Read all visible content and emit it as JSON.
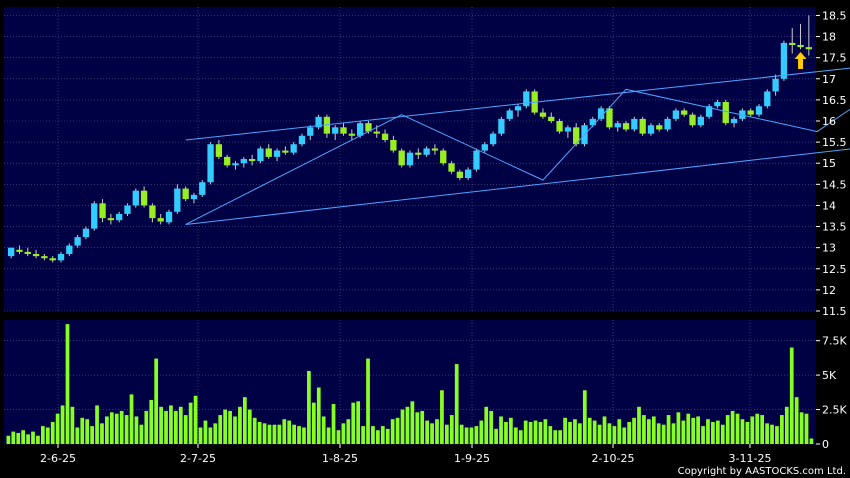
{
  "copyright": "Copyright by AASTOCKS.com Ltd.",
  "colors": {
    "background": "#000000",
    "plot_bg": "#000044",
    "grid": "#5a5a8a",
    "up_candle": "#33ccff",
    "down_candle": "#99ee22",
    "volume_bar": "#88ff22",
    "trendline": "#4da6ff",
    "arrow": "#ffcc00"
  },
  "chart_data": [
    {
      "type": "candlestick",
      "title": "",
      "x_tick_labels": [
        "2-6-25",
        "2-7-25",
        "1-8-25",
        "1-9-25",
        "2-10-25",
        "3-11-25"
      ],
      "y_tick_labels": [
        "11.5",
        "12",
        "12.5",
        "13",
        "13.5",
        "14",
        "14.5",
        "15",
        "15.5",
        "16",
        "16.5",
        "17",
        "17.5",
        "18",
        "18.5"
      ],
      "ylim": [
        11.5,
        18.7
      ],
      "grid": true,
      "ohlc": [
        [
          12.8,
          13.0,
          12.75,
          13.0
        ],
        [
          12.95,
          13.05,
          12.85,
          12.9
        ],
        [
          12.9,
          13.0,
          12.8,
          12.85
        ],
        [
          12.85,
          12.95,
          12.75,
          12.8
        ],
        [
          12.8,
          12.85,
          12.7,
          12.75
        ],
        [
          12.75,
          12.8,
          12.65,
          12.7
        ],
        [
          12.7,
          12.9,
          12.65,
          12.85
        ],
        [
          12.85,
          13.1,
          12.8,
          13.05
        ],
        [
          13.05,
          13.3,
          13.0,
          13.25
        ],
        [
          13.25,
          13.5,
          13.2,
          13.45
        ],
        [
          13.45,
          14.1,
          13.4,
          14.05
        ],
        [
          14.05,
          14.15,
          13.6,
          13.7
        ],
        [
          13.7,
          13.8,
          13.55,
          13.65
        ],
        [
          13.65,
          13.85,
          13.6,
          13.8
        ],
        [
          13.8,
          14.05,
          13.75,
          14.0
        ],
        [
          14.0,
          14.4,
          13.95,
          14.35
        ],
        [
          14.35,
          14.45,
          13.95,
          14.0
        ],
        [
          14.0,
          14.05,
          13.6,
          13.7
        ],
        [
          13.7,
          13.8,
          13.55,
          13.62
        ],
        [
          13.6,
          13.9,
          13.55,
          13.85
        ],
        [
          13.85,
          14.5,
          13.8,
          14.4
        ],
        [
          14.4,
          14.45,
          14.1,
          14.15
        ],
        [
          14.15,
          14.3,
          14.05,
          14.25
        ],
        [
          14.25,
          14.6,
          14.2,
          14.55
        ],
        [
          14.55,
          15.5,
          14.5,
          15.45
        ],
        [
          15.45,
          15.55,
          15.1,
          15.15
        ],
        [
          15.15,
          15.2,
          14.9,
          14.95
        ],
        [
          14.95,
          15.05,
          14.85,
          15.0
        ],
        [
          15.0,
          15.15,
          14.9,
          15.1
        ],
        [
          15.1,
          15.2,
          14.95,
          15.05
        ],
        [
          15.05,
          15.4,
          15.0,
          15.35
        ],
        [
          15.35,
          15.45,
          15.1,
          15.15
        ],
        [
          15.15,
          15.35,
          15.05,
          15.3
        ],
        [
          15.3,
          15.4,
          15.2,
          15.25
        ],
        [
          15.25,
          15.5,
          15.2,
          15.45
        ],
        [
          15.45,
          15.7,
          15.4,
          15.65
        ],
        [
          15.65,
          15.9,
          15.55,
          15.85
        ],
        [
          15.85,
          16.15,
          15.8,
          16.1
        ],
        [
          16.1,
          16.15,
          15.6,
          15.7
        ],
        [
          15.7,
          15.9,
          15.55,
          15.85
        ],
        [
          15.85,
          15.95,
          15.65,
          15.7
        ],
        [
          15.7,
          15.8,
          15.55,
          15.65
        ],
        [
          15.65,
          16.0,
          15.6,
          15.95
        ],
        [
          15.95,
          16.0,
          15.7,
          15.75
        ],
        [
          15.75,
          15.9,
          15.6,
          15.7
        ],
        [
          15.7,
          15.8,
          15.5,
          15.55
        ],
        [
          15.55,
          15.65,
          15.25,
          15.3
        ],
        [
          15.3,
          15.35,
          14.9,
          14.95
        ],
        [
          14.95,
          15.3,
          14.9,
          15.25
        ],
        [
          15.25,
          15.35,
          15.1,
          15.2
        ],
        [
          15.2,
          15.4,
          15.15,
          15.35
        ],
        [
          15.35,
          15.45,
          15.2,
          15.3
        ],
        [
          15.3,
          15.35,
          14.95,
          15.0
        ],
        [
          15.0,
          15.05,
          14.75,
          14.8
        ],
        [
          14.8,
          14.85,
          14.6,
          14.65
        ],
        [
          14.65,
          14.9,
          14.6,
          14.85
        ],
        [
          14.85,
          15.35,
          14.8,
          15.3
        ],
        [
          15.3,
          15.5,
          15.25,
          15.45
        ],
        [
          15.45,
          15.75,
          15.4,
          15.7
        ],
        [
          15.7,
          16.1,
          15.65,
          16.05
        ],
        [
          16.05,
          16.3,
          16.0,
          16.25
        ],
        [
          16.25,
          16.4,
          16.1,
          16.35
        ],
        [
          16.35,
          16.75,
          16.3,
          16.7
        ],
        [
          16.7,
          16.75,
          16.15,
          16.2
        ],
        [
          16.2,
          16.3,
          16.05,
          16.1
        ],
        [
          16.1,
          16.2,
          15.95,
          16.0
        ],
        [
          16.0,
          16.05,
          15.7,
          15.75
        ],
        [
          15.75,
          15.9,
          15.6,
          15.85
        ],
        [
          15.85,
          15.95,
          15.4,
          15.45
        ],
        [
          15.45,
          15.95,
          15.4,
          15.9
        ],
        [
          15.9,
          16.1,
          15.85,
          16.05
        ],
        [
          16.05,
          16.35,
          16.0,
          16.3
        ],
        [
          16.3,
          16.35,
          15.8,
          15.85
        ],
        [
          15.85,
          16.0,
          15.75,
          15.95
        ],
        [
          15.95,
          16.0,
          15.75,
          15.8
        ],
        [
          15.8,
          16.1,
          15.75,
          16.05
        ],
        [
          16.05,
          16.1,
          15.65,
          15.7
        ],
        [
          15.7,
          15.95,
          15.65,
          15.9
        ],
        [
          15.9,
          15.95,
          15.75,
          15.8
        ],
        [
          15.8,
          16.1,
          15.75,
          16.05
        ],
        [
          16.05,
          16.3,
          16.0,
          16.25
        ],
        [
          16.25,
          16.3,
          16.1,
          16.15
        ],
        [
          16.15,
          16.2,
          15.85,
          15.9
        ],
        [
          15.9,
          16.15,
          15.85,
          16.1
        ],
        [
          16.1,
          16.4,
          16.05,
          16.35
        ],
        [
          16.35,
          16.5,
          16.3,
          16.45
        ],
        [
          16.45,
          16.5,
          15.9,
          15.95
        ],
        [
          15.95,
          16.1,
          15.85,
          16.05
        ],
        [
          16.05,
          16.3,
          16.0,
          16.25
        ],
        [
          16.25,
          16.3,
          16.1,
          16.15
        ],
        [
          16.15,
          16.4,
          16.1,
          16.35
        ],
        [
          16.35,
          16.75,
          16.3,
          16.7
        ],
        [
          16.7,
          17.1,
          16.6,
          17.0
        ],
        [
          17.0,
          17.9,
          16.95,
          17.85
        ],
        [
          17.85,
          18.2,
          17.6,
          17.8
        ],
        [
          17.8,
          18.3,
          17.7,
          17.75
        ],
        [
          17.75,
          18.5,
          17.55,
          17.7
        ]
      ],
      "annotation_arrow": {
        "index": 95,
        "price": 17.35,
        "direction": "up"
      },
      "trendlines": [
        {
          "name": "upper-channel",
          "points": [
            [
              21,
              15.55
            ],
            [
              115,
              17.55
            ]
          ]
        },
        {
          "name": "lower-channel",
          "points": [
            [
              21,
              13.55
            ],
            [
              115,
              15.65
            ]
          ]
        },
        {
          "name": "zigzag",
          "points": [
            [
              21,
              13.55
            ],
            [
              47,
              16.15
            ],
            [
              64,
              14.6
            ],
            [
              74,
              16.75
            ],
            [
              97,
              15.75
            ],
            [
              112,
              17.75
            ]
          ]
        }
      ]
    },
    {
      "type": "bar",
      "title": "",
      "y_tick_labels": [
        "0",
        "2.5K",
        "5K",
        "7.5K"
      ],
      "ylim": [
        0,
        9000
      ],
      "grid": true,
      "values": [
        600,
        900,
        800,
        1000,
        700,
        900,
        600,
        1300,
        1200,
        1600,
        2200,
        2800,
        8700,
        2700,
        1200,
        1900,
        1800,
        1300,
        2800,
        1500,
        2000,
        2300,
        2200,
        2400,
        2100,
        3600,
        2000,
        1400,
        2400,
        3200,
        6200,
        2700,
        2400,
        2800,
        2400,
        2700,
        2100,
        3000,
        3500,
        1200,
        1700,
        1200,
        1500,
        2100,
        2500,
        2400,
        2000,
        2700,
        3400,
        2500,
        1900,
        1600,
        1500,
        1400,
        1400,
        1400,
        1800,
        1700,
        1400,
        1300,
        1200,
        5300,
        3000,
        4100,
        2000,
        1200,
        2900,
        1000,
        1500,
        1800,
        3000,
        3100,
        1300,
        6200,
        1300,
        1000,
        1300,
        1100,
        1800,
        1900,
        2500,
        2700,
        3100,
        2300,
        2400,
        1700,
        1500,
        1800,
        3900,
        1400,
        2100,
        5800,
        1400,
        1200,
        1200,
        1300,
        1700,
        2700,
        2400,
        1100,
        2000,
        1600,
        1900,
        1200,
        1000,
        1700,
        1600,
        1700,
        1600,
        1800,
        1300,
        1000,
        1000,
        1900,
        1600,
        1800,
        1500,
        3900,
        1900,
        1700,
        1400,
        2000,
        1500,
        1300,
        1800,
        1200,
        1600,
        1900,
        2700,
        2100,
        1800,
        2000,
        1500,
        1400,
        2100,
        1500,
        2300,
        1700,
        2200,
        1900,
        2000,
        1300,
        1800,
        1600,
        1700,
        1400,
        2100,
        2400,
        2200,
        1800,
        1600,
        2000,
        2200,
        2100,
        1500,
        1400,
        1300,
        2100,
        2700,
        7000,
        3400,
        2300,
        2200,
        400
      ]
    }
  ]
}
